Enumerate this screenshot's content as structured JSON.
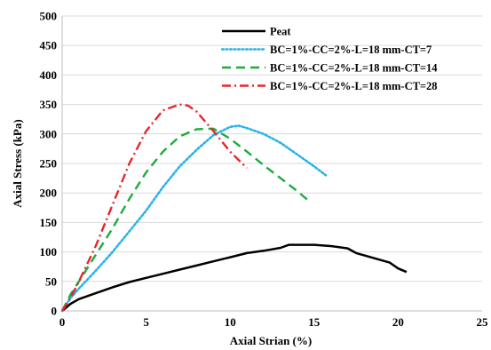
{
  "chart_data": {
    "type": "line",
    "title": "",
    "xlabel": "Axial  Strian (%)",
    "ylabel": "Axial  Stress (kPa)",
    "xlim": [
      0,
      25
    ],
    "ylim": [
      0,
      500
    ],
    "xticks": [
      0,
      5,
      10,
      15,
      20,
      25
    ],
    "yticks": [
      0,
      50,
      100,
      150,
      200,
      250,
      300,
      350,
      400,
      450,
      500
    ],
    "grid": "horizontal",
    "legend_position": "top-right",
    "series": [
      {
        "name": "Peat",
        "color": "#000000",
        "style": "solid",
        "x": [
          0,
          0.5,
          1,
          2,
          3,
          4,
          5,
          6,
          7,
          8,
          9,
          10,
          11,
          12,
          13,
          13.5,
          14,
          15,
          16,
          17,
          17.5,
          18,
          19,
          19.5,
          20,
          20.5
        ],
        "y": [
          0,
          12,
          20,
          30,
          40,
          49,
          56,
          63,
          70,
          77,
          84,
          91,
          98,
          102,
          107,
          112,
          112,
          112,
          110,
          106,
          98,
          94,
          86,
          82,
          72,
          66
        ]
      },
      {
        "name": "BC=1%-CC=2%-L=18 mm-CT=7",
        "color": "#29b3e8",
        "style": "dotted",
        "x": [
          0,
          0.5,
          1,
          2,
          3,
          4,
          5,
          6,
          7,
          8,
          9,
          10,
          10.5,
          11,
          12,
          13,
          14,
          15,
          15.7
        ],
        "y": [
          0,
          22,
          38,
          68,
          100,
          135,
          170,
          210,
          245,
          273,
          298,
          312,
          314,
          310,
          300,
          285,
          265,
          245,
          230
        ]
      },
      {
        "name": "BC=1%-CC=2%-L=18 mm-CT=14",
        "color": "#1faa3c",
        "style": "dashed",
        "x": [
          0,
          0.5,
          1,
          2,
          3,
          4,
          5,
          6,
          7,
          8,
          9,
          10,
          11,
          12,
          13,
          14,
          14.7
        ],
        "y": [
          0,
          28,
          50,
          95,
          140,
          190,
          235,
          270,
          296,
          308,
          309,
          292,
          270,
          247,
          225,
          203,
          186
        ]
      },
      {
        "name": "BC=1%-CC=2%-L=18 mm-CT=28",
        "color": "#e8252b",
        "style": "dashdot",
        "x": [
          0,
          0.5,
          1,
          2,
          3,
          4,
          5,
          6,
          7,
          7.5,
          8,
          9,
          10,
          11
        ],
        "y": [
          0,
          22,
          50,
          110,
          180,
          250,
          305,
          340,
          350,
          348,
          338,
          305,
          270,
          242
        ]
      }
    ]
  }
}
